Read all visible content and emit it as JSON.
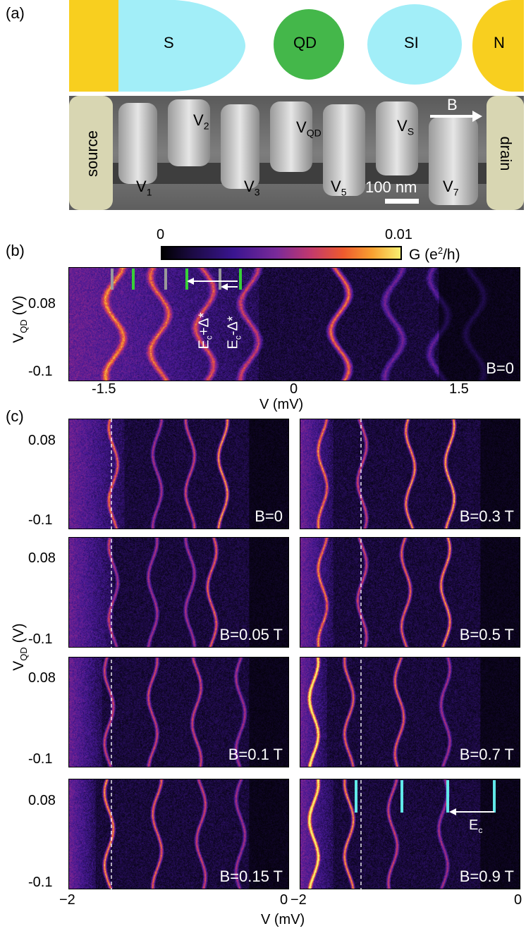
{
  "panel_labels": {
    "a": "(a)",
    "b": "(b)",
    "c": "(c)"
  },
  "schematic": {
    "regions": [
      {
        "name": "lead-left",
        "label": "",
        "color": "#f8cf1f"
      },
      {
        "name": "superconductor",
        "label": "S",
        "color": "#a2eef8"
      },
      {
        "name": "quantum-dot",
        "label": "QD",
        "color": "#44b74a"
      },
      {
        "name": "superconducting-island",
        "label": "SI",
        "color": "#a2eef8"
      },
      {
        "name": "normal-lead",
        "label": "N",
        "color": "#f8cf1f"
      }
    ]
  },
  "sem": {
    "source": "source",
    "drain": "drain",
    "field_label": "B",
    "scale_bar": "100 nm",
    "gates_top": [
      {
        "main": "V",
        "sub": "2"
      },
      {
        "main": "V",
        "sub": "QD"
      },
      {
        "main": "V",
        "sub": "S"
      }
    ],
    "gates_bottom": [
      {
        "main": "V",
        "sub": "1"
      },
      {
        "main": "V",
        "sub": "3"
      },
      {
        "main": "V",
        "sub": "5"
      },
      {
        "main": "V",
        "sub": "7"
      }
    ]
  },
  "colorbar": {
    "min_label": "0",
    "max_label": "0.01",
    "unit_main": "G (e",
    "unit_sup": "2",
    "unit_tail": "/h)"
  },
  "axes": {
    "vqd_main": "V",
    "vqd_sub": "QD",
    "vqd_tail": " (V)",
    "v_label": "V (mV)",
    "b_yticks": [
      "0.08",
      "-0.1"
    ],
    "b_xticks": [
      "-1.5",
      "0",
      "1.5"
    ],
    "c_yticks": [
      "0.08",
      "-0.1"
    ],
    "c_xticks_left": [
      "−2",
      "0"
    ],
    "c_xticks_right": [
      "−2",
      "0"
    ]
  },
  "annotations": {
    "ec_plus": "E",
    "ec_plus_sub": "c",
    "ec_plus_tail": "+Δ*",
    "ec_minus": "E",
    "ec_minus_sub": "c",
    "ec_minus_tail": "-Δ*",
    "ec": "E",
    "ec_sub": "c"
  },
  "chart_data": [
    {
      "type": "heatmap",
      "title": "",
      "xlabel": "V (mV)",
      "ylabel": "V_QD (V)",
      "xlim": [
        -1.8,
        1.8
      ],
      "ylim": [
        -0.12,
        0.12
      ],
      "colorbar_range": [
        0,
        0.01
      ],
      "colorbar_label": "G (e^2/h)",
      "label": "B=0"
    },
    {
      "type": "heatmap",
      "xlim": [
        -2,
        0
      ],
      "ylim": [
        -0.12,
        0.12
      ],
      "label": "B=0"
    },
    {
      "type": "heatmap",
      "xlim": [
        -2,
        0
      ],
      "ylim": [
        -0.12,
        0.12
      ],
      "label": "B=0.3 T"
    },
    {
      "type": "heatmap",
      "xlim": [
        -2,
        0
      ],
      "ylim": [
        -0.12,
        0.12
      ],
      "label": "B=0.05 T"
    },
    {
      "type": "heatmap",
      "xlim": [
        -2,
        0
      ],
      "ylim": [
        -0.12,
        0.12
      ],
      "label": "B=0.5 T"
    },
    {
      "type": "heatmap",
      "xlim": [
        -2,
        0
      ],
      "ylim": [
        -0.12,
        0.12
      ],
      "label": "B=0.1 T"
    },
    {
      "type": "heatmap",
      "xlim": [
        -2,
        0
      ],
      "ylim": [
        -0.12,
        0.12
      ],
      "label": "B=0.7 T"
    },
    {
      "type": "heatmap",
      "xlim": [
        -2,
        0
      ],
      "ylim": [
        -0.12,
        0.12
      ],
      "label": "B=0.15 T"
    },
    {
      "type": "heatmap",
      "xlim": [
        -2,
        0
      ],
      "ylim": [
        -0.12,
        0.12
      ],
      "label": "B=0.9 T"
    }
  ]
}
